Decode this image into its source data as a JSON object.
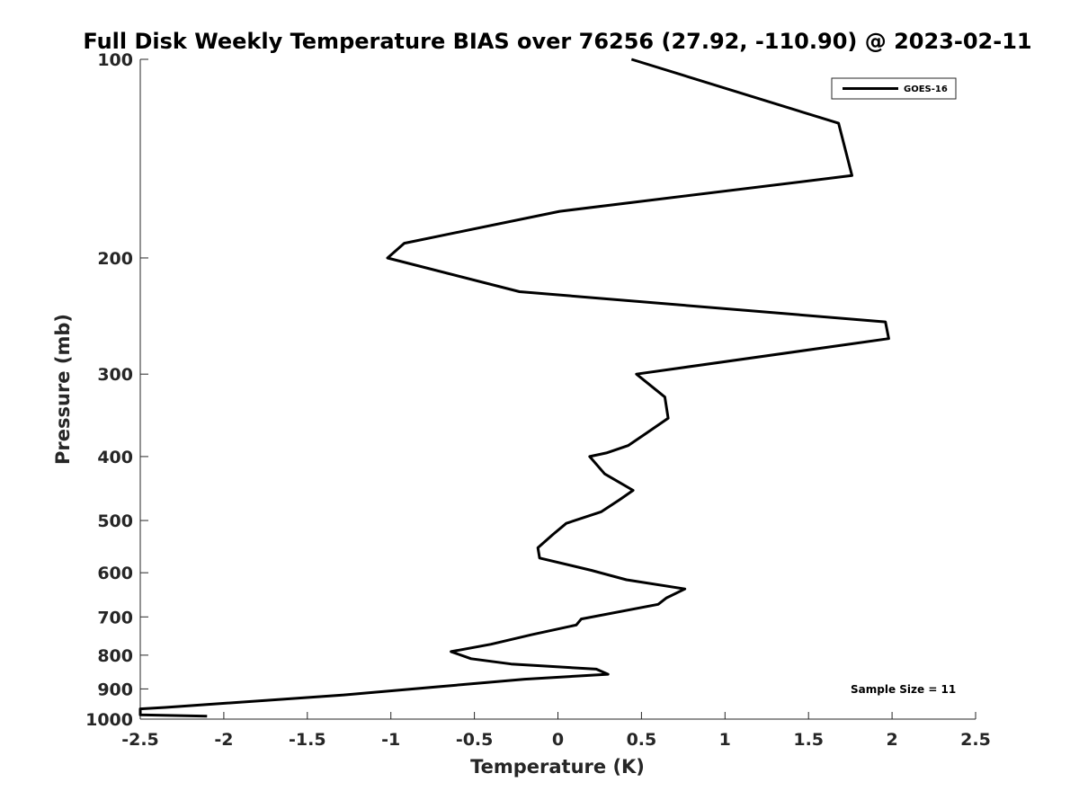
{
  "chart_data": {
    "type": "line",
    "title": "Full Disk Weekly Temperature BIAS over 76256 (27.92, -110.90) @ 2023-02-11",
    "xlabel": "Temperature (K)",
    "ylabel": "Pressure (mb)",
    "xlim": [
      -2.5,
      2.5
    ],
    "ylim": [
      100,
      1000
    ],
    "y_scale": "log",
    "y_reversed": true,
    "grid": false,
    "legend_position": "top-right",
    "xticks": [
      -2.5,
      -2,
      -1.5,
      -1,
      -0.5,
      0,
      0.5,
      1,
      1.5,
      2,
      2.5
    ],
    "xtick_labels": [
      "-2.5",
      "-2",
      "-1.5",
      "-1",
      "-0.5",
      "0",
      "0.5",
      "1",
      "1.5",
      "2",
      "2.5"
    ],
    "yticks": [
      100,
      200,
      300,
      400,
      500,
      600,
      700,
      800,
      900,
      1000
    ],
    "ytick_labels": [
      "100",
      "200",
      "300",
      "400",
      "500",
      "600",
      "700",
      "800",
      "900",
      "1000"
    ],
    "annotation": "Sample Size = 11",
    "series": [
      {
        "name": "GOES-16",
        "color": "#000000",
        "points": [
          {
            "x": 0.44,
            "p": 100
          },
          {
            "x": 1.68,
            "p": 125
          },
          {
            "x": 1.76,
            "p": 150
          },
          {
            "x": 0.01,
            "p": 170
          },
          {
            "x": -0.92,
            "p": 190
          },
          {
            "x": -1.02,
            "p": 200
          },
          {
            "x": -0.23,
            "p": 225
          },
          {
            "x": 1.96,
            "p": 250
          },
          {
            "x": 1.98,
            "p": 265
          },
          {
            "x": 0.47,
            "p": 300
          },
          {
            "x": 0.64,
            "p": 325
          },
          {
            "x": 0.66,
            "p": 350
          },
          {
            "x": 0.52,
            "p": 370
          },
          {
            "x": 0.42,
            "p": 385
          },
          {
            "x": 0.29,
            "p": 395
          },
          {
            "x": 0.19,
            "p": 400
          },
          {
            "x": 0.28,
            "p": 425
          },
          {
            "x": 0.45,
            "p": 450
          },
          {
            "x": 0.37,
            "p": 465
          },
          {
            "x": 0.26,
            "p": 485
          },
          {
            "x": 0.05,
            "p": 505
          },
          {
            "x": -0.03,
            "p": 525
          },
          {
            "x": -0.12,
            "p": 550
          },
          {
            "x": -0.11,
            "p": 570
          },
          {
            "x": 0.2,
            "p": 595
          },
          {
            "x": 0.41,
            "p": 615
          },
          {
            "x": 0.76,
            "p": 635
          },
          {
            "x": 0.65,
            "p": 655
          },
          {
            "x": 0.6,
            "p": 670
          },
          {
            "x": 0.14,
            "p": 705
          },
          {
            "x": 0.11,
            "p": 720
          },
          {
            "x": -0.16,
            "p": 745
          },
          {
            "x": -0.4,
            "p": 770
          },
          {
            "x": -0.64,
            "p": 790
          },
          {
            "x": -0.52,
            "p": 810
          },
          {
            "x": -0.28,
            "p": 825
          },
          {
            "x": 0.23,
            "p": 840
          },
          {
            "x": 0.3,
            "p": 855
          },
          {
            "x": -0.2,
            "p": 870
          },
          {
            "x": -1.3,
            "p": 920
          },
          {
            "x": -2.35,
            "p": 960
          },
          {
            "x": -2.5,
            "p": 965
          },
          {
            "x": -2.5,
            "p": 985
          },
          {
            "x": -2.1,
            "p": 990
          }
        ]
      }
    ]
  }
}
